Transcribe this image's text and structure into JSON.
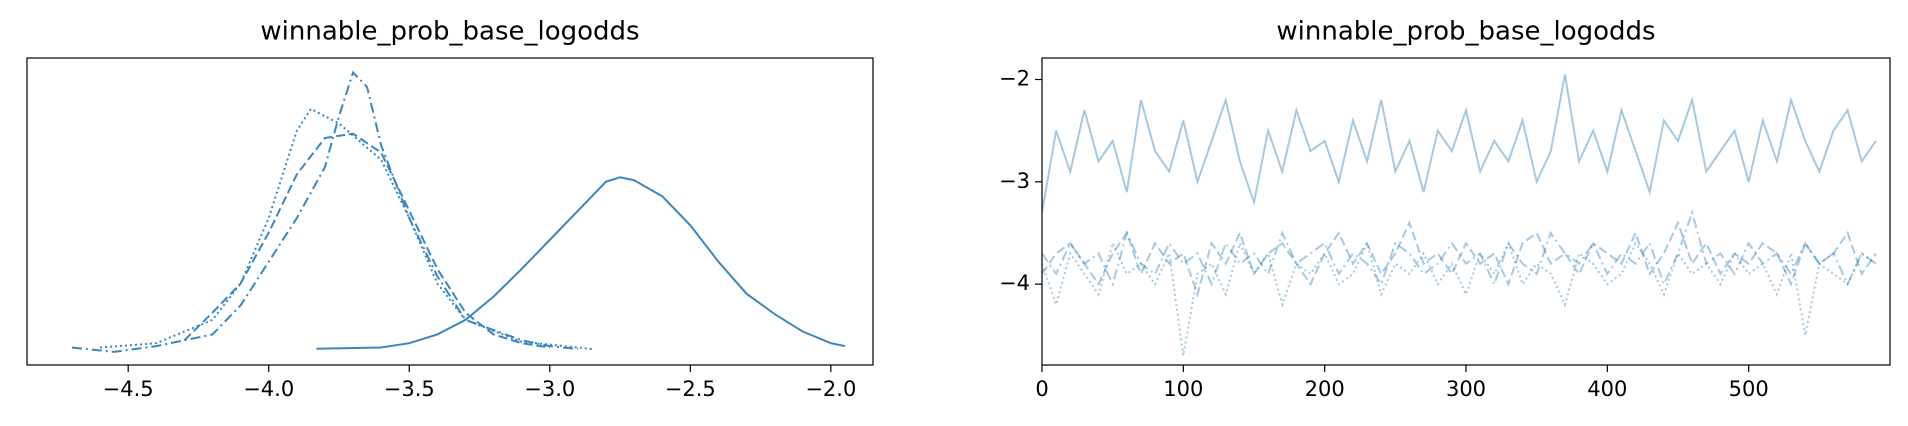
{
  "chart_data": [
    {
      "type": "kde",
      "title": "winnable_prob_base_logodds",
      "xlim": [
        -4.86,
        -1.85
      ],
      "ylim": [
        -0.11,
        2.0
      ],
      "xticks": [
        {
          "value": -4.5,
          "label": "−4.5"
        },
        {
          "value": -4.0,
          "label": "−4.0"
        },
        {
          "value": -3.5,
          "label": "−3.5"
        },
        {
          "value": -3.0,
          "label": "−3.0"
        },
        {
          "value": -2.5,
          "label": "−2.5"
        },
        {
          "value": -2.0,
          "label": "−2.0"
        }
      ],
      "series": [
        {
          "color": "#3a87c0",
          "linestyle": "solid",
          "x": [
            -3.83,
            -3.6,
            -3.5,
            -3.4,
            -3.3,
            -3.2,
            -3.1,
            -3.0,
            -2.9,
            -2.8,
            -2.75,
            -2.7,
            -2.6,
            -2.5,
            -2.4,
            -2.3,
            -2.2,
            -2.1,
            -2.0,
            -1.95
          ],
          "values": [
            0.002,
            0.01,
            0.04,
            0.1,
            0.2,
            0.36,
            0.55,
            0.75,
            0.95,
            1.15,
            1.18,
            1.16,
            1.05,
            0.85,
            0.6,
            0.38,
            0.24,
            0.12,
            0.04,
            0.02
          ]
        },
        {
          "color": "#3a87c0",
          "linestyle": "dashed",
          "x": [
            -4.3,
            -4.2,
            -4.1,
            -4.0,
            -3.9,
            -3.8,
            -3.7,
            -3.6,
            -3.5,
            -3.4,
            -3.3,
            -3.2,
            -3.1,
            -3.0
          ],
          "values": [
            0.06,
            0.25,
            0.45,
            0.8,
            1.2,
            1.45,
            1.48,
            1.35,
            0.95,
            0.55,
            0.25,
            0.1,
            0.04,
            0.01
          ]
        },
        {
          "color": "#3a87c0",
          "linestyle": "dotted",
          "x": [
            -4.6,
            -4.4,
            -4.2,
            -4.1,
            -4.0,
            -3.9,
            -3.85,
            -3.75,
            -3.6,
            -3.5,
            -3.4,
            -3.3,
            -3.1,
            -2.9,
            -2.85
          ],
          "values": [
            0.01,
            0.04,
            0.2,
            0.45,
            0.9,
            1.5,
            1.65,
            1.55,
            1.3,
            0.9,
            0.45,
            0.2,
            0.05,
            0.01,
            0.0
          ]
        },
        {
          "color": "#3a87c0",
          "linestyle": "dashdot",
          "x": [
            -4.7,
            -4.55,
            -4.4,
            -4.2,
            -4.1,
            -4.0,
            -3.9,
            -3.8,
            -3.75,
            -3.7,
            -3.65,
            -3.6,
            -3.5,
            -3.4,
            -3.3,
            -3.2,
            -3.1,
            -3.0,
            -2.9
          ],
          "values": [
            0.01,
            -0.02,
            0.02,
            0.1,
            0.3,
            0.6,
            0.9,
            1.25,
            1.6,
            1.9,
            1.8,
            1.4,
            0.9,
            0.5,
            0.2,
            0.13,
            0.06,
            0.02,
            0.0
          ]
        }
      ]
    },
    {
      "type": "trace",
      "title": "winnable_prob_base_logodds",
      "xlim": [
        0,
        600
      ],
      "ylim": [
        -4.79,
        -1.79
      ],
      "xticks": [
        0,
        100,
        200,
        300,
        400,
        500
      ],
      "yticks": [
        {
          "value": -2,
          "label": "−2"
        },
        {
          "value": -3,
          "label": "−3"
        },
        {
          "value": -4,
          "label": "−4"
        }
      ],
      "alpha": 0.4,
      "x": [
        0,
        10,
        20,
        30,
        40,
        50,
        60,
        70,
        80,
        90,
        100,
        110,
        120,
        130,
        140,
        150,
        160,
        170,
        180,
        190,
        200,
        210,
        220,
        230,
        240,
        250,
        260,
        270,
        280,
        290,
        300,
        310,
        320,
        330,
        340,
        350,
        360,
        370,
        380,
        390,
        400,
        410,
        420,
        430,
        440,
        450,
        460,
        470,
        480,
        490,
        500,
        510,
        520,
        530,
        540,
        550,
        560,
        570,
        580,
        590
      ],
      "series": [
        {
          "color": "#1f77b4",
          "linestyle": "solid",
          "values": [
            -3.3,
            -2.5,
            -2.9,
            -2.3,
            -2.8,
            -2.6,
            -3.1,
            -2.2,
            -2.7,
            -2.9,
            -2.4,
            -3.0,
            -2.6,
            -2.2,
            -2.8,
            -3.2,
            -2.5,
            -2.9,
            -2.3,
            -2.7,
            -2.6,
            -3.0,
            -2.4,
            -2.8,
            -2.2,
            -2.9,
            -2.6,
            -3.1,
            -2.5,
            -2.7,
            -2.3,
            -2.9,
            -2.6,
            -2.8,
            -2.4,
            -3.0,
            -2.7,
            -1.95,
            -2.8,
            -2.5,
            -2.9,
            -2.3,
            -2.7,
            -3.1,
            -2.4,
            -2.6,
            -2.2,
            -2.9,
            -2.7,
            -2.5,
            -3.0,
            -2.4,
            -2.8,
            -2.2,
            -2.6,
            -2.9,
            -2.5,
            -2.3,
            -2.8,
            -2.6
          ]
        },
        {
          "color": "#1f77b4",
          "linestyle": "dashed",
          "values": [
            -3.9,
            -3.7,
            -3.6,
            -3.8,
            -4.0,
            -3.7,
            -3.5,
            -3.9,
            -3.6,
            -3.8,
            -3.7,
            -4.1,
            -3.6,
            -3.8,
            -3.5,
            -3.9,
            -3.7,
            -3.6,
            -3.8,
            -4.0,
            -3.7,
            -3.5,
            -3.8,
            -3.6,
            -3.9,
            -3.7,
            -3.4,
            -3.8,
            -3.7,
            -3.9,
            -3.6,
            -3.8,
            -3.7,
            -4.0,
            -3.6,
            -3.5,
            -3.8,
            -3.7,
            -3.9,
            -3.6,
            -3.7,
            -3.8,
            -3.5,
            -3.9,
            -3.7,
            -3.4,
            -3.8,
            -3.6,
            -3.9,
            -3.7,
            -3.8,
            -3.6,
            -3.7,
            -4.0,
            -3.6,
            -3.8,
            -3.7,
            -3.5,
            -3.9,
            -3.7
          ]
        },
        {
          "color": "#1f77b4",
          "linestyle": "dotted",
          "values": [
            -3.8,
            -4.2,
            -3.7,
            -3.9,
            -4.1,
            -3.6,
            -3.9,
            -3.8,
            -4.0,
            -3.7,
            -4.7,
            -3.9,
            -3.8,
            -4.1,
            -3.6,
            -3.9,
            -3.7,
            -4.2,
            -3.8,
            -3.9,
            -3.7,
            -4.0,
            -3.9,
            -3.6,
            -4.1,
            -3.8,
            -3.9,
            -3.7,
            -4.0,
            -3.8,
            -4.1,
            -3.7,
            -3.9,
            -3.6,
            -4.0,
            -3.8,
            -3.9,
            -4.2,
            -3.7,
            -3.8,
            -4.0,
            -3.9,
            -3.6,
            -3.8,
            -4.1,
            -3.7,
            -3.9,
            -3.8,
            -4.0,
            -3.7,
            -3.9,
            -3.8,
            -4.1,
            -3.7,
            -4.5,
            -3.8,
            -3.9,
            -4.0,
            -3.7,
            -3.8
          ]
        },
        {
          "color": "#1f77b4",
          "linestyle": "dashdot",
          "values": [
            -3.7,
            -3.9,
            -3.6,
            -3.8,
            -3.7,
            -4.0,
            -3.5,
            -3.8,
            -3.9,
            -3.6,
            -3.8,
            -3.7,
            -4.0,
            -3.6,
            -3.8,
            -3.7,
            -3.9,
            -3.5,
            -3.8,
            -3.7,
            -3.6,
            -3.9,
            -3.7,
            -3.8,
            -4.0,
            -3.6,
            -3.7,
            -3.9,
            -3.8,
            -3.6,
            -3.8,
            -3.7,
            -4.0,
            -3.6,
            -3.8,
            -3.9,
            -3.5,
            -3.7,
            -3.8,
            -3.6,
            -3.9,
            -3.7,
            -3.8,
            -3.6,
            -4.0,
            -3.7,
            -3.3,
            -3.8,
            -3.7,
            -3.9,
            -3.6,
            -3.8,
            -3.7,
            -3.9,
            -3.6,
            -3.8,
            -3.7,
            -4.0,
            -3.7,
            -3.8
          ]
        }
      ]
    }
  ]
}
